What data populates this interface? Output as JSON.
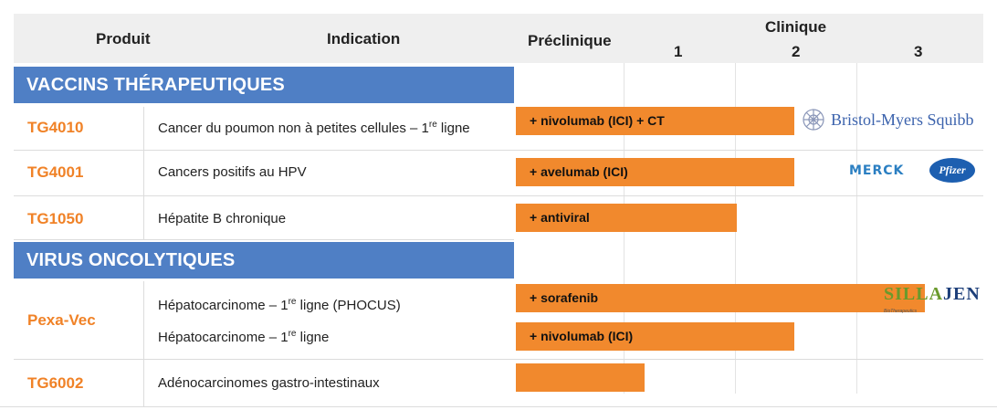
{
  "header": {
    "produit": "Produit",
    "indication": "Indication",
    "preclinique": "Préclinique",
    "clinique": "Clinique",
    "phase1": "1",
    "phase2": "2",
    "phase3": "3"
  },
  "sections": {
    "vaccins": "VACCINS THÉRAPEUTIQUES",
    "virus": "VIRUS ONCOLYTIQUES"
  },
  "rows": [
    {
      "produit": "TG4010",
      "indication": "Cancer du poumon non à petites cellules – 1",
      "sup": "re",
      "indication_suffix": " ligne",
      "bar": "+ nivolumab (ICI) + CT"
    },
    {
      "produit": "TG4001",
      "indication": "Cancers positifs au HPV",
      "bar": "+ avelumab (ICI)"
    },
    {
      "produit": "TG1050",
      "indication": "Hépatite B chronique",
      "bar": "+ antiviral"
    },
    {
      "produit": "Pexa-Vec",
      "indication_a": "Hépatocarcinome – 1",
      "sup_a": "re",
      "suffix_a": " ligne (PHOCUS)",
      "bar_a": "+ sorafenib",
      "indication_b": "Hépatocarcinome – 1",
      "sup_b": "re",
      "suffix_b": " ligne",
      "bar_b": "+ nivolumab (ICI)"
    },
    {
      "produit": "TG6002",
      "indication": "Adénocarcinomes gastro-intestinaux",
      "bar": ""
    }
  ],
  "logos": {
    "bms": "Bristol-Myers Squibb",
    "merck": "MERCK",
    "pfizer": "Pfizer",
    "sillajen_a": "SILLA",
    "sillajen_b": "JEN",
    "sillajen_sub": "BioTherapeutics"
  },
  "colors": {
    "band": "#4f7fc5",
    "bar": "#f1892d",
    "product": "#f08227"
  }
}
